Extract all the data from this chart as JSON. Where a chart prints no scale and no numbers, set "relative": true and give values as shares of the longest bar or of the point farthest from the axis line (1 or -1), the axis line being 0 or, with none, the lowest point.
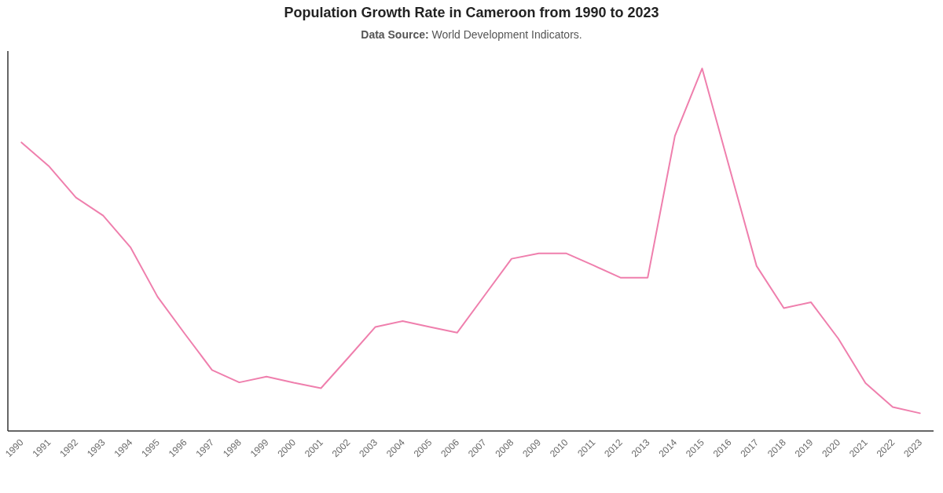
{
  "chart_data": {
    "type": "line",
    "title": "Population Growth Rate in Cameroon from 1990 to 2023",
    "subtitle": "Data Source: World Development Indicators.",
    "categories": [
      "1990",
      "1991",
      "1992",
      "1993",
      "1994",
      "1995",
      "1996",
      "1997",
      "1998",
      "1999",
      "2000",
      "2001",
      "2002",
      "2003",
      "2004",
      "2005",
      "2006",
      "2007",
      "2008",
      "2009",
      "2010",
      "2011",
      "2012",
      "2013",
      "2014",
      "2015",
      "2016",
      "2017",
      "2018",
      "2019",
      "2020",
      "2021",
      "2022",
      "2023"
    ],
    "relative": true,
    "series": [
      {
        "color": "#ef7fad",
        "values": [
          0.796,
          0.731,
          0.644,
          0.594,
          0.507,
          0.37,
          0.268,
          0.168,
          0.134,
          0.15,
          0.133,
          0.118,
          0.202,
          0.287,
          0.303,
          0.287,
          0.271,
          0.373,
          0.475,
          0.49,
          0.49,
          0.457,
          0.423,
          0.423,
          0.814,
          1.0,
          0.727,
          0.455,
          0.339,
          0.355,
          0.255,
          0.132,
          0.066,
          0.049
        ]
      }
    ]
  }
}
